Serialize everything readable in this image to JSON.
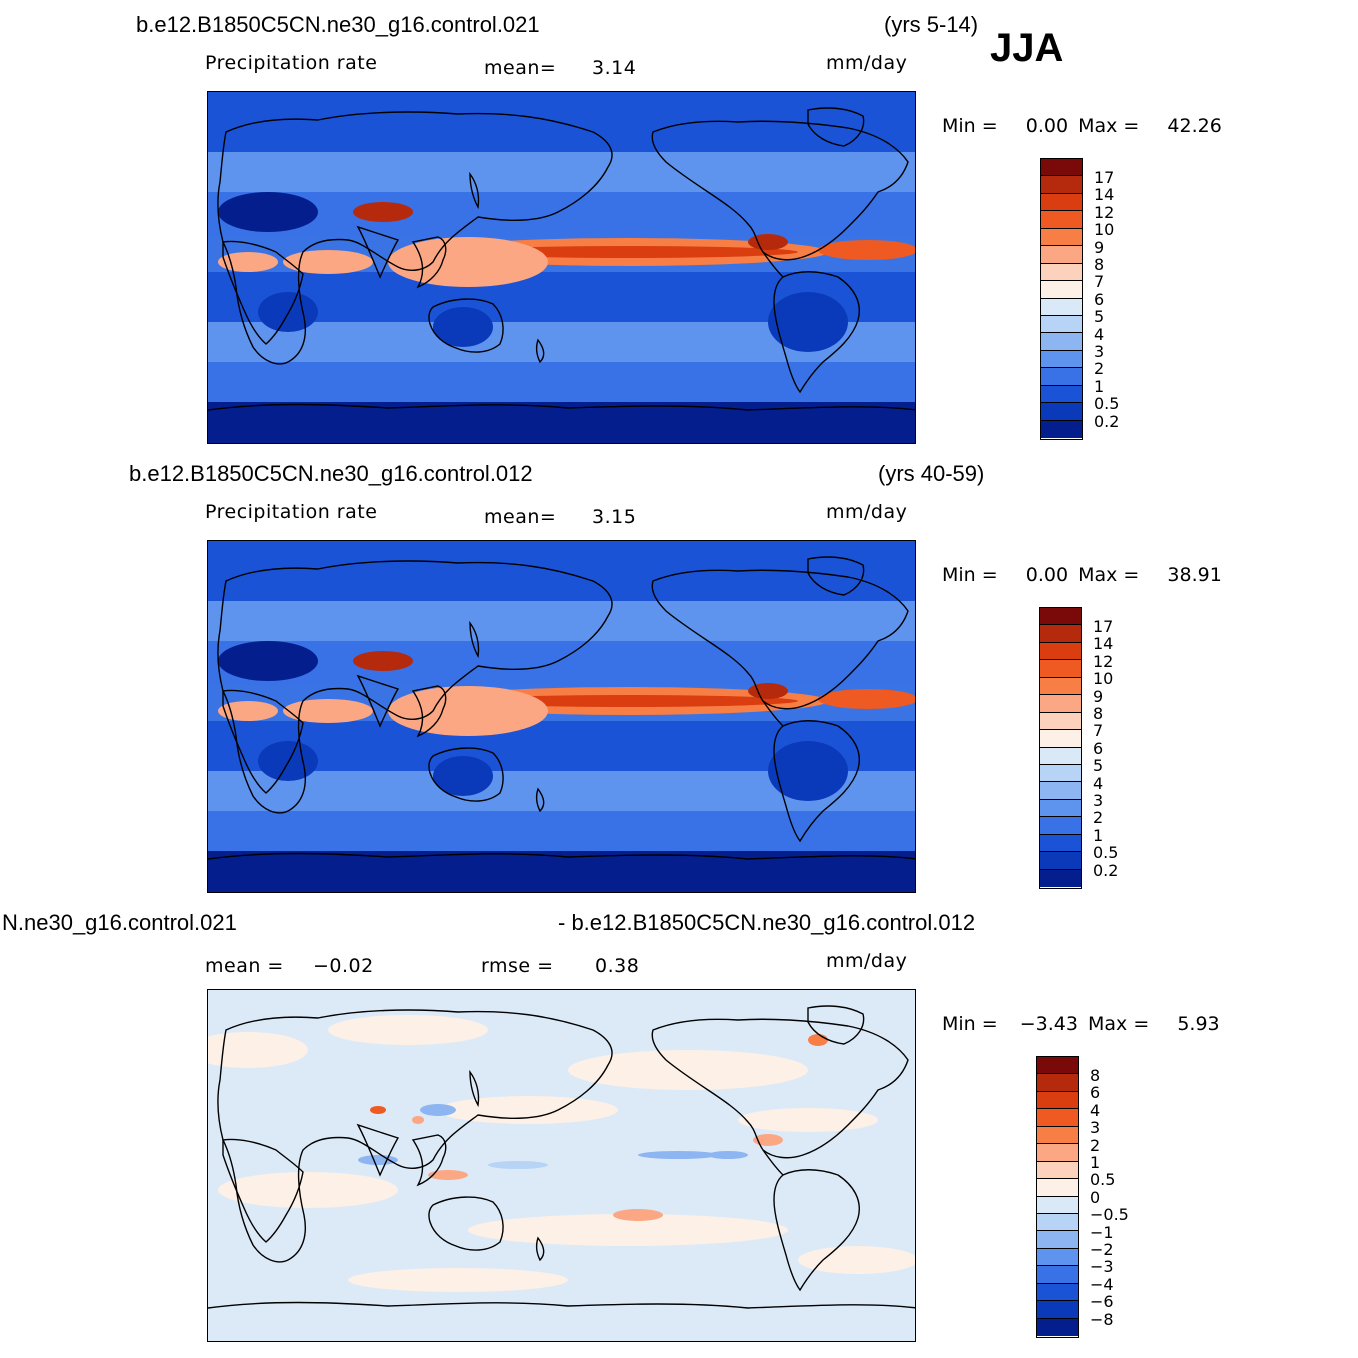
{
  "season": "JJA",
  "panels": [
    {
      "title_left": "b.e12.B1850C5CN.ne30_g16.control.021",
      "title_right": "(yrs 5-14)",
      "field": "Precipitation  rate",
      "stat1_label": "mean=",
      "stat1_value": "3.14",
      "stat2_label": "",
      "stat2_value": "",
      "units": "mm/day",
      "min_label": "Min  =",
      "min_value": "0.00",
      "max_label": "Max  =",
      "max_value": "42.26",
      "colorbar_labels": [
        "17",
        "14",
        "12",
        "10",
        "9",
        "8",
        "7",
        "6",
        "5",
        "4",
        "3",
        "2",
        "1",
        "0.5",
        "0.2"
      ]
    },
    {
      "title_left": "b.e12.B1850C5CN.ne30_g16.control.012",
      "title_right": "(yrs 40-59)",
      "field": "Precipitation  rate",
      "stat1_label": "mean=",
      "stat1_value": "3.15",
      "stat2_label": "",
      "stat2_value": "",
      "units": "mm/day",
      "min_label": "Min  =",
      "min_value": "0.00",
      "max_label": "Max  =",
      "max_value": "38.91",
      "colorbar_labels": [
        "17",
        "14",
        "12",
        "10",
        "9",
        "8",
        "7",
        "6",
        "5",
        "4",
        "3",
        "2",
        "1",
        "0.5",
        "0.2"
      ]
    },
    {
      "title_left": "N.ne30_g16.control.021",
      "title_right": "- b.e12.B1850C5CN.ne30_g16.control.012",
      "field": "",
      "stat1_label": "mean  =",
      "stat1_value": "−0.02",
      "stat2_label": "rmse  =",
      "stat2_value": "0.38",
      "units": "mm/day",
      "min_label": "Min  =",
      "min_value": "−3.43",
      "max_label": "Max  =",
      "max_value": "5.93",
      "colorbar_labels": [
        "8",
        "6",
        "4",
        "3",
        "2",
        "1",
        "0.5",
        "0",
        "−0.5",
        "−1",
        "−2",
        "−3",
        "−4",
        "−6",
        "−8"
      ]
    }
  ],
  "colors": {
    "precip_scale": [
      "#7a0a0a",
      "#b52a0c",
      "#d93d10",
      "#ee5a22",
      "#f77e45",
      "#fba783",
      "#fdd2bc",
      "#fdf0e6",
      "#dae9f8",
      "#b7d3f6",
      "#8cb5f2",
      "#5e93ee",
      "#3872e6",
      "#1b53d6",
      "#0a3aba",
      "#041e8e"
    ],
    "diff_scale": [
      "#7a0a0a",
      "#b52a0c",
      "#d93d10",
      "#ee5a22",
      "#f77e45",
      "#fba783",
      "#fdd2bc",
      "#fdf0e6",
      "#dae9f8",
      "#b7d3f6",
      "#8cb5f2",
      "#5e93ee",
      "#3872e6",
      "#1b53d6",
      "#0a3aba",
      "#041e8e"
    ]
  }
}
